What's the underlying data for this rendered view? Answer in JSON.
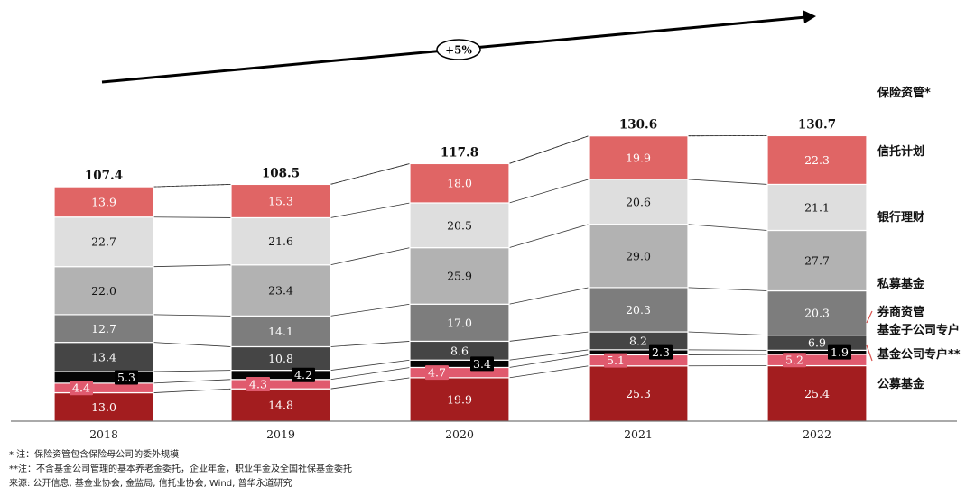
{
  "chart_data": {
    "type": "bar",
    "stacked": true,
    "categories": [
      "2018",
      "2019",
      "2020",
      "2021",
      "2022"
    ],
    "totals": [
      "107.4",
      "108.5",
      "117.8",
      "130.6",
      "130.7"
    ],
    "growth_label": "+5%",
    "series": [
      {
        "name": "公募基金",
        "color": "#a31d1f",
        "label_color": "#ffffff",
        "values": [
          13.0,
          14.8,
          19.9,
          25.3,
          25.4
        ],
        "labels": [
          "13.0",
          "14.8",
          "19.9",
          "25.3",
          "25.4"
        ]
      },
      {
        "name": "基金公司专户**",
        "color": "#e05a6e",
        "label_color": "#ffffff",
        "values": [
          4.4,
          4.3,
          4.7,
          5.1,
          5.2
        ],
        "labels": [
          "4.4",
          "4.3",
          "4.7",
          "5.1",
          "5.2"
        ]
      },
      {
        "name": "基金子公司专户",
        "color": "#050505",
        "label_color": "#ffffff",
        "values": [
          5.3,
          4.2,
          3.4,
          2.3,
          1.9
        ],
        "labels": [
          "5.3",
          "4.2",
          "3.4",
          "2.3",
          "1.9"
        ]
      },
      {
        "name": "券商资管",
        "color": "#454545",
        "label_color": "#ffffff",
        "values": [
          13.4,
          10.8,
          8.6,
          8.2,
          6.9
        ],
        "labels": [
          "13.4",
          "10.8",
          "8.6",
          "8.2",
          "6.9"
        ]
      },
      {
        "name": "私募基金",
        "color": "#7d7d7d",
        "label_color": "#ffffff",
        "values": [
          12.7,
          14.1,
          17.0,
          20.3,
          20.3
        ],
        "labels": [
          "12.7",
          "14.1",
          "17.0",
          "20.3",
          "20.3"
        ]
      },
      {
        "name": "银行理财",
        "color": "#b2b2b2",
        "label_color": "#111111",
        "values": [
          22.0,
          23.4,
          25.9,
          29.0,
          27.7
        ],
        "labels": [
          "22.0",
          "23.4",
          "25.9",
          "29.0",
          "27.7"
        ]
      },
      {
        "name": "信托计划",
        "color": "#dedede",
        "label_color": "#111111",
        "values": [
          22.7,
          21.6,
          20.5,
          20.6,
          21.1
        ],
        "labels": [
          "22.7",
          "21.6",
          "20.5",
          "20.6",
          "21.1"
        ]
      },
      {
        "name": "保险资管*",
        "color": "#e06565",
        "label_color": "#ffffff",
        "values": [
          13.9,
          15.3,
          18.0,
          19.9,
          22.3
        ],
        "labels": [
          "13.9",
          "15.3",
          "18.0",
          "19.9",
          "22.3"
        ]
      }
    ],
    "legend_position": "right"
  },
  "footnotes": {
    "note1": "* 注：保险资管包含保险母公司的委外规模",
    "note2": "**注：不含基金公司管理的基本养老金委托，企业年金，职业年金及全国社保基金委托",
    "source": "来源: 公开信息, 基金业协会, 金监局, 信托业协会, Wind, 普华永道研究"
  }
}
